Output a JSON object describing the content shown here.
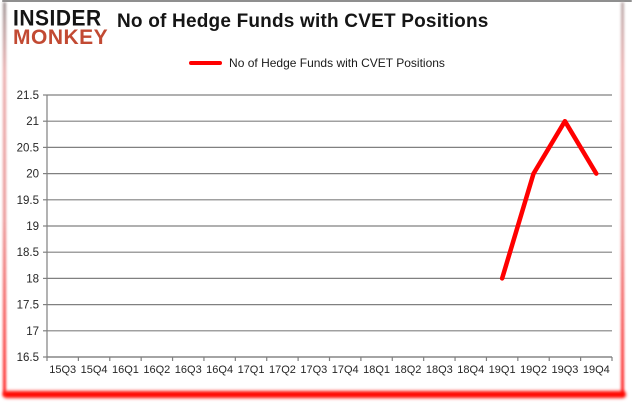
{
  "logo": {
    "line1": "INSIDER",
    "line2": "MONKEY",
    "line1_color": "#141414",
    "line2_color": "#c24a33"
  },
  "header": {
    "title": "No of Hedge Funds with CVET Positions"
  },
  "legend": {
    "label": "No of Hedge Funds with CVET Positions",
    "swatch_color": "#ff0000"
  },
  "chart_data": {
    "type": "line",
    "title": "No of Hedge Funds with CVET Positions",
    "categories": [
      "15Q3",
      "15Q4",
      "16Q1",
      "16Q2",
      "16Q3",
      "16Q4",
      "17Q1",
      "17Q2",
      "17Q3",
      "17Q4",
      "18Q1",
      "18Q2",
      "18Q3",
      "18Q4",
      "19Q1",
      "19Q2",
      "19Q3",
      "19Q4"
    ],
    "series": [
      {
        "name": "No of Hedge Funds with CVET Positions",
        "color": "#ff0000",
        "values": [
          null,
          null,
          null,
          null,
          null,
          null,
          null,
          null,
          null,
          null,
          null,
          null,
          null,
          null,
          18,
          20,
          21,
          20
        ]
      }
    ],
    "ylim": [
      16.5,
      21.5
    ],
    "ytick_step": 0.5,
    "ytick_labels": [
      "16.5",
      "17",
      "17.5",
      "18",
      "18.5",
      "19",
      "19.5",
      "20",
      "20.5",
      "21",
      "21.5"
    ],
    "grid": true,
    "legend_position": "top",
    "axis_color": "#808080",
    "tick_label_color": "#262626"
  }
}
